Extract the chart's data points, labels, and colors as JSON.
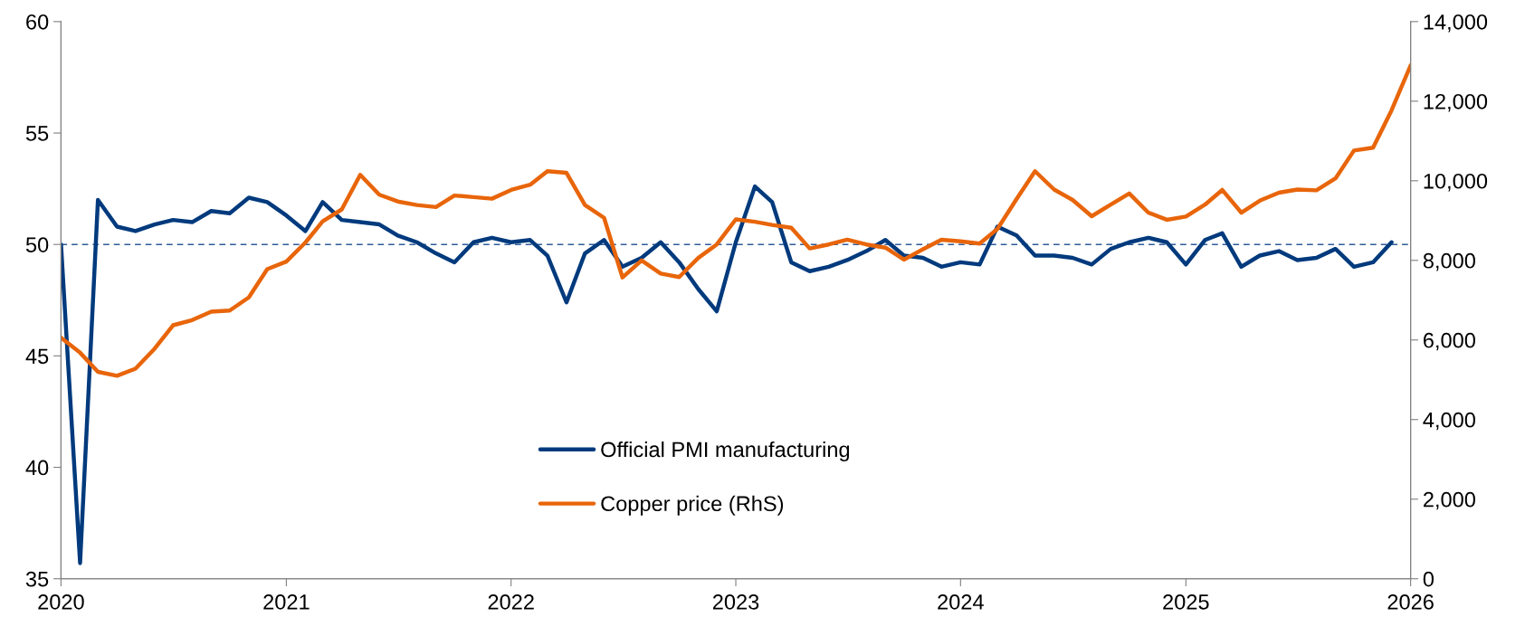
{
  "chart_data": {
    "type": "line",
    "x": [
      "2020-01",
      "2020-02",
      "2020-03",
      "2020-04",
      "2020-05",
      "2020-06",
      "2020-07",
      "2020-08",
      "2020-09",
      "2020-10",
      "2020-11",
      "2020-12",
      "2021-01",
      "2021-02",
      "2021-03",
      "2021-04",
      "2021-05",
      "2021-06",
      "2021-07",
      "2021-08",
      "2021-09",
      "2021-10",
      "2021-11",
      "2021-12",
      "2022-01",
      "2022-02",
      "2022-03",
      "2022-04",
      "2022-05",
      "2022-06",
      "2022-07",
      "2022-08",
      "2022-09",
      "2022-10",
      "2022-11",
      "2022-12",
      "2023-01",
      "2023-02",
      "2023-03",
      "2023-04",
      "2023-05",
      "2023-06",
      "2023-07",
      "2023-08",
      "2023-09",
      "2023-10",
      "2023-11",
      "2023-12",
      "2024-01",
      "2024-02",
      "2024-03",
      "2024-04",
      "2024-05",
      "2024-06",
      "2024-07",
      "2024-08",
      "2024-09",
      "2024-10",
      "2024-11",
      "2024-12",
      "2025-01",
      "2025-02",
      "2025-03",
      "2025-04",
      "2025-05",
      "2025-06",
      "2025-07",
      "2025-08",
      "2025-09",
      "2025-10",
      "2025-11",
      "2025-12",
      "2026-01"
    ],
    "series": [
      {
        "name": "Official PMI manufacturing",
        "color": "#003a7d",
        "values": [
          50.0,
          35.7,
          52.0,
          50.8,
          50.6,
          50.9,
          51.1,
          51.0,
          51.5,
          51.4,
          52.1,
          51.9,
          51.3,
          50.6,
          51.9,
          51.1,
          51.0,
          50.9,
          50.4,
          50.1,
          49.6,
          49.2,
          50.1,
          50.3,
          50.1,
          50.2,
          49.5,
          47.4,
          49.6,
          50.2,
          49.0,
          49.4,
          50.1,
          49.2,
          48.0,
          47.0,
          50.1,
          52.6,
          51.9,
          49.2,
          48.8,
          49.0,
          49.3,
          49.7,
          50.2,
          49.5,
          49.4,
          49.0,
          49.2,
          49.1,
          50.8,
          50.4,
          49.5,
          49.5,
          49.4,
          49.1,
          49.8,
          50.1,
          50.3,
          50.1,
          49.1,
          50.2,
          50.5,
          49.0,
          49.5,
          49.7,
          49.3,
          49.4,
          49.8,
          49.0,
          49.2,
          50.1,
          null
        ]
      },
      {
        "name": "Copper price (RhS)",
        "color": "#e8650a",
        "axis": "y2",
        "values": [
          6060,
          5680,
          5200,
          5100,
          5280,
          5780,
          6370,
          6500,
          6710,
          6740,
          7070,
          7780,
          7970,
          8450,
          8980,
          9280,
          10150,
          9650,
          9480,
          9390,
          9340,
          9630,
          9590,
          9550,
          9770,
          9900,
          10240,
          10200,
          9390,
          9070,
          7570,
          8000,
          7670,
          7580,
          8060,
          8400,
          9030,
          8970,
          8890,
          8820,
          8300,
          8400,
          8520,
          8400,
          8320,
          8020,
          8280,
          8520,
          8480,
          8420,
          8790,
          9540,
          10240,
          9780,
          9520,
          9110,
          9400,
          9680,
          9200,
          9020,
          9100,
          9400,
          9770,
          9200,
          9500,
          9700,
          9780,
          9760,
          10060,
          10760,
          10830,
          11770,
          12900
        ]
      }
    ],
    "xlim": [
      "2020-01",
      "2026-01"
    ],
    "xticks": [
      {
        "value": "2020-01",
        "label": "2020"
      },
      {
        "value": "2021-01",
        "label": "2021"
      },
      {
        "value": "2022-01",
        "label": "2022"
      },
      {
        "value": "2023-01",
        "label": "2023"
      },
      {
        "value": "2024-01",
        "label": "2024"
      },
      {
        "value": "2025-01",
        "label": "2025"
      },
      {
        "value": "2026-01",
        "label": "2026"
      }
    ],
    "ylim": [
      35,
      60
    ],
    "yticks": [
      35,
      40,
      45,
      50,
      55,
      60
    ],
    "y2lim": [
      0,
      14000
    ],
    "y2ticks": [
      {
        "value": 0,
        "label": "0"
      },
      {
        "value": 2000,
        "label": "2,000"
      },
      {
        "value": 4000,
        "label": "4,000"
      },
      {
        "value": 6000,
        "label": "6,000"
      },
      {
        "value": 8000,
        "label": "8,000"
      },
      {
        "value": 10000,
        "label": "10,000"
      },
      {
        "value": 12000,
        "label": "12,000"
      },
      {
        "value": 14000,
        "label": "14,000"
      }
    ],
    "ref_lines": [
      {
        "axis": "y",
        "value": 50,
        "color": "#2e5c9a",
        "line_style": "dashed"
      }
    ],
    "grid": false,
    "legend": "bottom",
    "line_style": "solid",
    "marker": "none"
  }
}
